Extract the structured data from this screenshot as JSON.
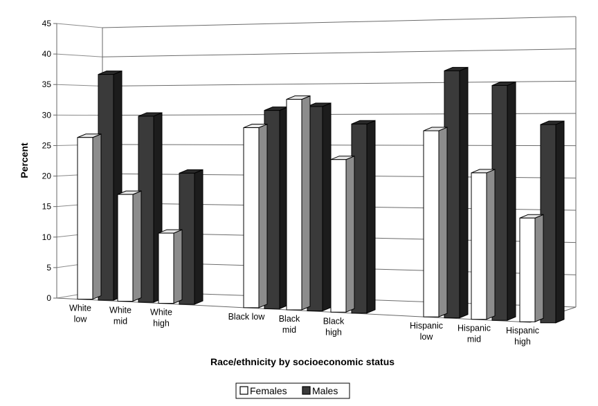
{
  "chart_data": {
    "type": "bar",
    "style": "3d-clustered",
    "xlabel": "Race/ethnicity by socioeconomic status",
    "ylabel": "Percent",
    "ylim": [
      0,
      45
    ],
    "yticks": [
      0,
      5,
      10,
      15,
      20,
      25,
      30,
      35,
      40,
      45
    ],
    "grid": true,
    "legend_position": "bottom",
    "categories": [
      [
        "White",
        "low"
      ],
      [
        "White",
        "mid"
      ],
      [
        "White",
        "high"
      ],
      [
        "Black low"
      ],
      [
        "Black",
        "mid"
      ],
      [
        "Black",
        "high"
      ],
      [
        "Hispanic",
        "low"
      ],
      [
        "Hispanic",
        "mid"
      ],
      [
        "Hispanic",
        "high"
      ]
    ],
    "series": [
      {
        "name": "Females",
        "color": "#ffffff",
        "side_color": "#8c8c8c",
        "values": [
          26.5,
          17.5,
          11.5,
          29.5,
          34.5,
          25,
          30.5,
          24,
          17
        ]
      },
      {
        "name": "Males",
        "color": "#3a3a3a",
        "side_color": "#1c1c1c",
        "values": [
          37,
          30.5,
          21.5,
          32.5,
          33.5,
          31,
          40.5,
          38.5,
          32.5
        ]
      }
    ]
  }
}
